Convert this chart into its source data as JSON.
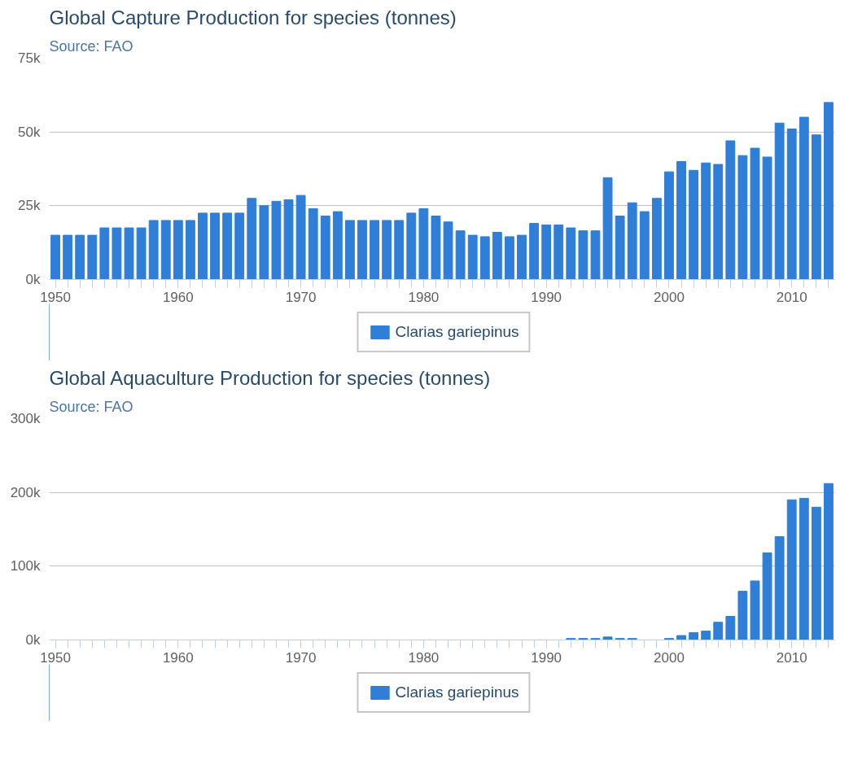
{
  "chart_data": [
    {
      "type": "bar",
      "title": "Global Capture Production for species (tonnes)",
      "annotations": [
        "Source: FAO"
      ],
      "x": [
        1950,
        1951,
        1952,
        1953,
        1954,
        1955,
        1956,
        1957,
        1958,
        1959,
        1960,
        1961,
        1962,
        1963,
        1964,
        1965,
        1966,
        1967,
        1968,
        1969,
        1970,
        1971,
        1972,
        1973,
        1974,
        1975,
        1976,
        1977,
        1978,
        1979,
        1980,
        1981,
        1982,
        1983,
        1984,
        1985,
        1986,
        1987,
        1988,
        1989,
        1990,
        1991,
        1992,
        1993,
        1994,
        1995,
        1996,
        1997,
        1998,
        1999,
        2000,
        2001,
        2002,
        2003,
        2004,
        2005,
        2006,
        2007,
        2008,
        2009,
        2010,
        2011,
        2012,
        2013
      ],
      "series": [
        {
          "name": "Clarias gariepinus",
          "color": "#2f7ed8",
          "values": [
            15000,
            15000,
            15000,
            15000,
            17500,
            17500,
            17500,
            17500,
            20000,
            20000,
            20000,
            20000,
            22500,
            22500,
            22500,
            22500,
            27500,
            25000,
            26500,
            27000,
            28500,
            24000,
            21500,
            23000,
            20000,
            20000,
            20000,
            20000,
            20000,
            22500,
            24000,
            21500,
            19500,
            16500,
            15000,
            14500,
            16000,
            14500,
            15000,
            19000,
            18500,
            18500,
            17500,
            16500,
            16500,
            34500,
            21500,
            26000,
            23000,
            27500,
            36500,
            40000,
            37000,
            39500,
            39000,
            47000,
            42000,
            44500,
            41500,
            53000,
            51000,
            55000,
            49000,
            60000
          ]
        }
      ],
      "xlim": [
        1949.5,
        2013.5
      ],
      "xticks": [
        1950,
        1960,
        1970,
        1980,
        1990,
        2000,
        2010
      ],
      "ylim": [
        0,
        75000
      ],
      "yticks": [
        {
          "value": 0,
          "label": "0k"
        },
        {
          "value": 25000,
          "label": "25k"
        },
        {
          "value": 50000,
          "label": "50k"
        },
        {
          "value": 75000,
          "label": "75k"
        }
      ],
      "grid": "y",
      "legend": "bottom"
    },
    {
      "type": "bar",
      "title": "Global Aquaculture Production for species (tonnes)",
      "annotations": [
        "Source: FAO"
      ],
      "x": [
        1950,
        1951,
        1952,
        1953,
        1954,
        1955,
        1956,
        1957,
        1958,
        1959,
        1960,
        1961,
        1962,
        1963,
        1964,
        1965,
        1966,
        1967,
        1968,
        1969,
        1970,
        1971,
        1972,
        1973,
        1974,
        1975,
        1976,
        1977,
        1978,
        1979,
        1980,
        1981,
        1982,
        1983,
        1984,
        1985,
        1986,
        1987,
        1988,
        1989,
        1990,
        1991,
        1992,
        1993,
        1994,
        1995,
        1996,
        1997,
        1998,
        1999,
        2000,
        2001,
        2002,
        2003,
        2004,
        2005,
        2006,
        2007,
        2008,
        2009,
        2010,
        2011,
        2012,
        2013
      ],
      "series": [
        {
          "name": "Clarias gariepinus",
          "color": "#2f7ed8",
          "values": [
            0,
            0,
            0,
            0,
            0,
            0,
            0,
            0,
            0,
            0,
            0,
            0,
            0,
            0,
            0,
            0,
            0,
            0,
            0,
            0,
            0,
            0,
            0,
            0,
            0,
            0,
            0,
            0,
            0,
            0,
            0,
            0,
            0,
            0,
            0,
            0,
            0,
            0,
            0,
            0,
            0,
            0,
            2000,
            2000,
            2000,
            4000,
            2000,
            2000,
            0,
            0,
            2000,
            6000,
            10000,
            12000,
            24000,
            32000,
            66000,
            80000,
            118000,
            140000,
            190000,
            192000,
            180000,
            212000
          ]
        }
      ],
      "xlim": [
        1949.5,
        2013.5
      ],
      "xticks": [
        1950,
        1960,
        1970,
        1980,
        1990,
        2000,
        2010
      ],
      "ylim": [
        0,
        300000
      ],
      "yticks": [
        {
          "value": 0,
          "label": "0k"
        },
        {
          "value": 100000,
          "label": "100k"
        },
        {
          "value": 200000,
          "label": "200k"
        },
        {
          "value": 300000,
          "label": "300k"
        }
      ],
      "grid": "y",
      "legend": "bottom"
    }
  ]
}
